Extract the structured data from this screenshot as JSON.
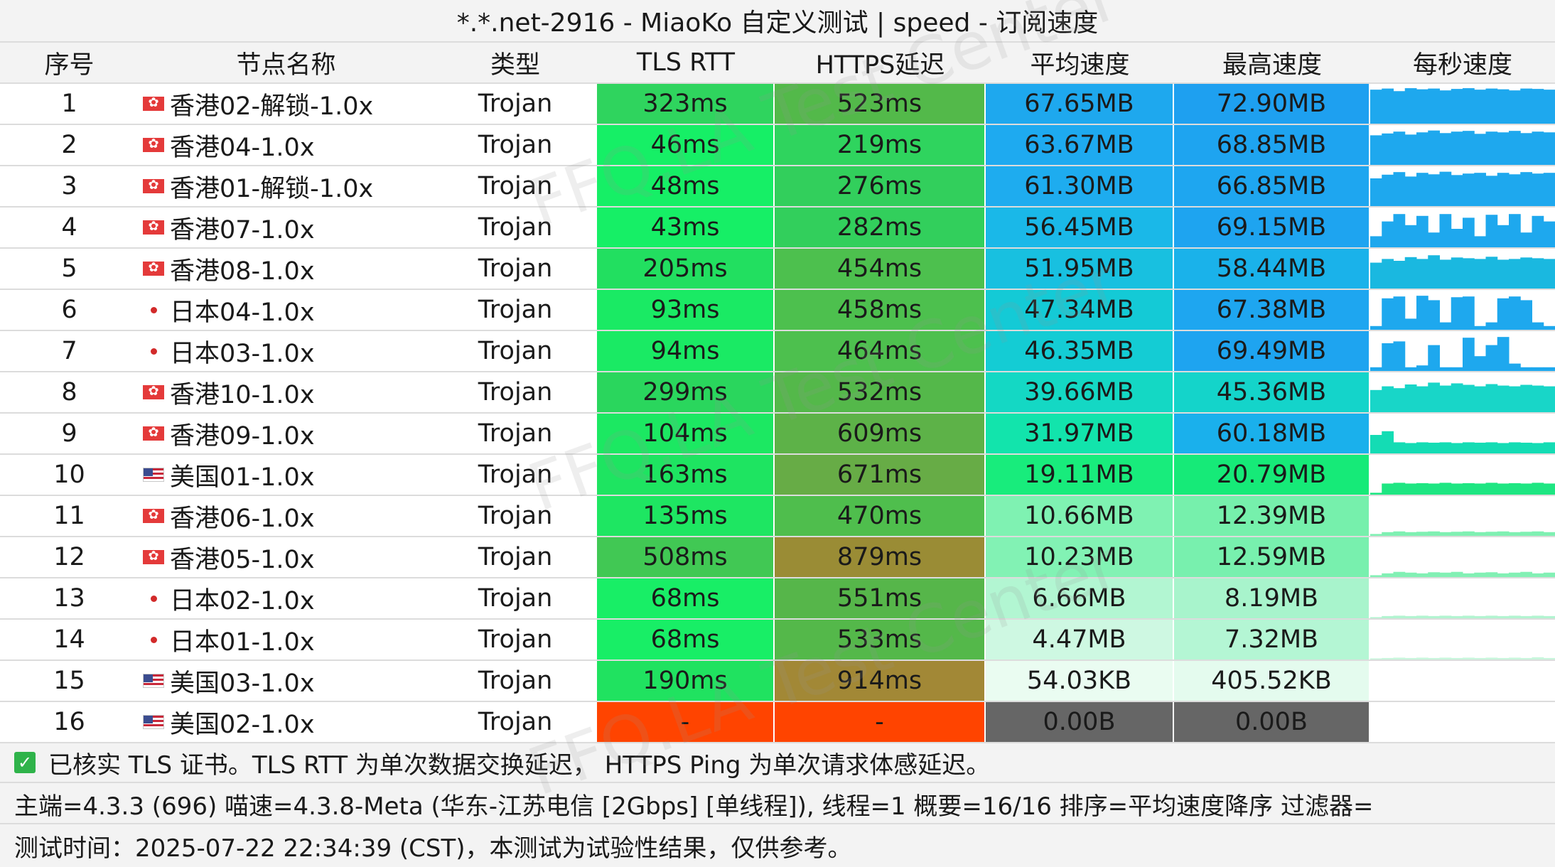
{
  "title": "*.*.net-2916 - MiaoKo 自定义测试 | speed - 订阅速度",
  "headers": [
    "序号",
    "节点名称",
    "类型",
    "TLS RTT",
    "HTTPS延迟",
    "平均速度",
    "最高速度",
    "每秒速度"
  ],
  "rows": [
    {
      "id": "1",
      "flag": "hk",
      "name": "香港02-解锁-1.0x",
      "type": "Trojan",
      "tls": "323ms",
      "https": "523ms",
      "avg": "67.65MB",
      "max": "72.90MB",
      "c_tls": "#2fd45e",
      "c_https": "#53b94a",
      "c_avg": "#1ea8ee",
      "c_max": "#1ea0f0",
      "spark_color": "#1ea8ee",
      "spark": [
        0.92,
        0.95,
        0.88,
        0.96,
        0.93,
        0.95,
        0.9,
        0.94,
        0.96,
        0.92,
        0.95,
        0.93,
        0.9,
        0.95,
        0.94,
        0.92
      ]
    },
    {
      "id": "2",
      "flag": "hk",
      "name": "香港04-1.0x",
      "type": "Trojan",
      "tls": "46ms",
      "https": "219ms",
      "avg": "63.67MB",
      "max": "68.85MB",
      "c_tls": "#16ef66",
      "c_https": "#2fd45e",
      "c_avg": "#1eaaf0",
      "c_max": "#1ea4f0",
      "spark_color": "#1ea8ee",
      "spark": [
        0.8,
        0.85,
        0.9,
        0.82,
        0.88,
        0.93,
        0.86,
        0.9,
        0.92,
        0.84,
        0.9,
        0.88,
        0.92,
        0.86,
        0.9,
        0.88
      ]
    },
    {
      "id": "3",
      "flag": "hk",
      "name": "香港01-解锁-1.0x",
      "type": "Trojan",
      "tls": "48ms",
      "https": "276ms",
      "avg": "61.30MB",
      "max": "66.85MB",
      "c_tls": "#16ef66",
      "c_https": "#32cf5c",
      "c_avg": "#1eacef",
      "c_max": "#1ea6f0",
      "spark_color": "#1ea8ee",
      "spark": [
        0.75,
        0.85,
        0.92,
        0.8,
        0.9,
        0.86,
        0.93,
        0.84,
        0.88,
        0.9,
        0.82,
        0.9,
        0.86,
        0.92,
        0.88,
        0.9
      ]
    },
    {
      "id": "4",
      "flag": "hk",
      "name": "香港07-1.0x",
      "type": "Trojan",
      "tls": "43ms",
      "https": "282ms",
      "avg": "56.45MB",
      "max": "69.15MB",
      "c_tls": "#16ef66",
      "c_https": "#32cf5c",
      "c_avg": "#1ab8e8",
      "c_max": "#1ea4f0",
      "spark_color": "#1ea8ee",
      "spark": [
        0.3,
        0.7,
        0.9,
        0.6,
        0.85,
        0.4,
        0.9,
        0.5,
        0.8,
        0.3,
        0.88,
        0.6,
        0.9,
        0.4,
        0.85,
        0.7
      ]
    },
    {
      "id": "5",
      "flag": "hk",
      "name": "香港08-1.0x",
      "type": "Trojan",
      "tls": "205ms",
      "https": "454ms",
      "avg": "51.95MB",
      "max": "58.44MB",
      "c_tls": "#22df60",
      "c_https": "#4dc04e",
      "c_avg": "#18c0e0",
      "c_max": "#1ab2ea",
      "spark_color": "#1ab8e0",
      "spark": [
        0.7,
        0.8,
        0.75,
        0.85,
        0.8,
        0.9,
        0.78,
        0.84,
        0.82,
        0.8,
        0.86,
        0.78,
        0.8,
        0.84,
        0.82,
        0.8
      ]
    },
    {
      "id": "6",
      "flag": "jp",
      "name": "日本04-1.0x",
      "type": "Trojan",
      "tls": "93ms",
      "https": "458ms",
      "avg": "47.34MB",
      "max": "67.38MB",
      "c_tls": "#1aea64",
      "c_https": "#4dc04e",
      "c_avg": "#14cad6",
      "c_max": "#1ea6f0",
      "spark_color": "#1ea8ee",
      "spark": [
        0.1,
        0.85,
        0.9,
        0.3,
        0.92,
        0.8,
        0.2,
        0.88,
        0.9,
        0.1,
        0.2,
        0.85,
        0.9,
        0.8,
        0.2,
        0.1
      ]
    },
    {
      "id": "7",
      "flag": "jp",
      "name": "日本03-1.0x",
      "type": "Trojan",
      "tls": "94ms",
      "https": "464ms",
      "avg": "46.35MB",
      "max": "69.49MB",
      "c_tls": "#1aea64",
      "c_https": "#4dc04e",
      "c_avg": "#14ccd4",
      "c_max": "#1ea4f0",
      "spark_color": "#1ea8ee",
      "spark": [
        0.1,
        0.75,
        0.8,
        0.1,
        0.15,
        0.7,
        0.1,
        0.1,
        0.9,
        0.4,
        0.7,
        0.92,
        0.2,
        0.1,
        0.1,
        0.1
      ]
    },
    {
      "id": "8",
      "flag": "hk",
      "name": "香港10-1.0x",
      "type": "Trojan",
      "tls": "299ms",
      "https": "532ms",
      "avg": "39.66MB",
      "max": "45.36MB",
      "c_tls": "#2ad65d",
      "c_https": "#54b84a",
      "c_avg": "#14d8c4",
      "c_max": "#14d4ca",
      "spark_color": "#18d6c8",
      "spark": [
        0.6,
        0.7,
        0.65,
        0.75,
        0.7,
        0.8,
        0.72,
        0.78,
        0.74,
        0.7,
        0.76,
        0.72,
        0.7,
        0.74,
        0.72,
        0.7
      ]
    },
    {
      "id": "9",
      "flag": "hk",
      "name": "香港09-1.0x",
      "type": "Trojan",
      "tls": "104ms",
      "https": "609ms",
      "avg": "31.97MB",
      "max": "60.18MB",
      "c_tls": "#1ce862",
      "c_https": "#5db248",
      "c_avg": "#12e4ac",
      "c_max": "#1ab0ec",
      "spark_color": "#14dcb4",
      "spark": [
        0.5,
        0.6,
        0.3,
        0.28,
        0.3,
        0.29,
        0.3,
        0.28,
        0.3,
        0.29,
        0.3,
        0.28,
        0.3,
        0.29,
        0.28,
        0.3
      ]
    },
    {
      "id": "10",
      "flag": "us",
      "name": "美国01-1.0x",
      "type": "Trojan",
      "tls": "163ms",
      "https": "671ms",
      "avg": "19.11MB",
      "max": "20.79MB",
      "c_tls": "#1ee461",
      "c_https": "#67ac46",
      "c_avg": "#18ec7c",
      "c_max": "#16ea78",
      "spark_color": "#1ee682",
      "spark": [
        0.05,
        0.3,
        0.32,
        0.3,
        0.31,
        0.3,
        0.32,
        0.3,
        0.31,
        0.3,
        0.32,
        0.3,
        0.31,
        0.3,
        0.32,
        0.3
      ]
    },
    {
      "id": "11",
      "flag": "hk",
      "name": "香港06-1.0x",
      "type": "Trojan",
      "tls": "135ms",
      "https": "470ms",
      "avg": "10.66MB",
      "max": "12.39MB",
      "c_tls": "#1ee662",
      "c_https": "#4fbe4d",
      "c_avg": "#7ff2b2",
      "c_max": "#76f0ac",
      "spark_color": "#7ff0b2",
      "spark": [
        0.05,
        0.1,
        0.12,
        0.1,
        0.11,
        0.12,
        0.1,
        0.11,
        0.12,
        0.1,
        0.11,
        0.12,
        0.1,
        0.11,
        0.12,
        0.1
      ]
    },
    {
      "id": "12",
      "flag": "hk",
      "name": "香港05-1.0x",
      "type": "Trojan",
      "tls": "508ms",
      "https": "879ms",
      "avg": "10.23MB",
      "max": "12.59MB",
      "c_tls": "#41c854",
      "c_https": "#9a8c35",
      "c_avg": "#82f2b4",
      "c_max": "#78f0ae",
      "spark_color": "#82f0b4",
      "spark": [
        0.05,
        0.1,
        0.14,
        0.12,
        0.1,
        0.13,
        0.12,
        0.14,
        0.1,
        0.12,
        0.13,
        0.1,
        0.12,
        0.14,
        0.1,
        0.12
      ]
    },
    {
      "id": "13",
      "flag": "jp",
      "name": "日本02-1.0x",
      "type": "Trojan",
      "tls": "68ms",
      "https": "551ms",
      "avg": "6.66MB",
      "max": "8.19MB",
      "c_tls": "#18ee66",
      "c_https": "#56b64a",
      "c_avg": "#b2f6d2",
      "c_max": "#a8f4cc",
      "spark_color": "#b2f4d0",
      "spark": [
        0.03,
        0.06,
        0.07,
        0.06,
        0.07,
        0.06,
        0.07,
        0.06,
        0.07,
        0.06,
        0.07,
        0.06,
        0.07,
        0.06,
        0.07,
        0.06
      ]
    },
    {
      "id": "14",
      "flag": "jp",
      "name": "日本01-1.0x",
      "type": "Trojan",
      "tls": "68ms",
      "https": "533ms",
      "avg": "4.47MB",
      "max": "7.32MB",
      "c_tls": "#18ee66",
      "c_https": "#54b84a",
      "c_avg": "#cef8e2",
      "c_max": "#b4f6d4",
      "spark_color": "#c8f6dc",
      "spark": [
        0.03,
        0.04,
        0.05,
        0.04,
        0.05,
        0.04,
        0.05,
        0.04,
        0.05,
        0.04,
        0.05,
        0.04,
        0.05,
        0.04,
        0.06,
        0.04
      ]
    },
    {
      "id": "15",
      "flag": "us",
      "name": "美国03-1.0x",
      "type": "Trojan",
      "tls": "190ms",
      "https": "914ms",
      "avg": "54.03KB",
      "max": "405.52KB",
      "c_tls": "#20e260",
      "c_https": "#a28836",
      "c_avg": "#eafcf1",
      "c_max": "#e4fbee",
      "spark_color": "#eafcf1",
      "spark": []
    },
    {
      "id": "16",
      "flag": "us",
      "name": "美国02-1.0x",
      "type": "Trojan",
      "tls": "-",
      "https": "-",
      "avg": "0.00B",
      "max": "0.00B",
      "c_tls": "#ff4400",
      "c_https": "#ff4400",
      "c_avg": "#666666",
      "c_max": "#666666",
      "spark_color": "#ffffff",
      "spark": []
    }
  ],
  "footer": {
    "line1": "已核实 TLS 证书。TLS RTT 为单次数据交换延迟， HTTPS Ping 为单次请求体感延迟。",
    "line2": "主端=4.3.3 (696) 喵速=4.3.8-Meta (华东-江苏电信 [2Gbps] [单线程]), 线程=1 概要=16/16 排序=平均速度降序 过滤器=",
    "line3": "测试时间：2025-07-22 22:34:39 (CST)，本测试为试验性结果，仅供参考。"
  },
  "watermark": "FFQ.LA Test Center"
}
